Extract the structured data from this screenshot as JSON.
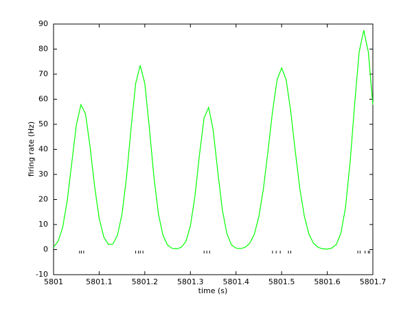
{
  "chart_data": {
    "type": "line",
    "xlabel": "time (s)",
    "ylabel": "firing rate (Hz)",
    "x": [
      5801,
      5801.01,
      5801.02,
      5801.03,
      5801.04,
      5801.05,
      5801.06,
      5801.07,
      5801.08,
      5801.09,
      5801.1,
      5801.11,
      5801.12,
      5801.13,
      5801.14,
      5801.15,
      5801.16,
      5801.17,
      5801.18,
      5801.19,
      5801.2,
      5801.21,
      5801.22,
      5801.23,
      5801.24,
      5801.25,
      5801.26,
      5801.27,
      5801.28,
      5801.29,
      5801.3,
      5801.31,
      5801.32,
      5801.33,
      5801.34,
      5801.35,
      5801.36,
      5801.37,
      5801.38,
      5801.39,
      5801.4,
      5801.41,
      5801.42,
      5801.43,
      5801.44,
      5801.45,
      5801.46,
      5801.47,
      5801.48,
      5801.49,
      5801.5,
      5801.51,
      5801.52,
      5801.53,
      5801.54,
      5801.55,
      5801.56,
      5801.57,
      5801.58,
      5801.59,
      5801.6,
      5801.61,
      5801.62,
      5801.63,
      5801.64,
      5801.65,
      5801.66,
      5801.67,
      5801.68,
      5801.69,
      5801.7
    ],
    "series": [
      {
        "color": "#00ff00",
        "values": [
          1.0,
          3.3,
          8.9,
          19.6,
          34.7,
          49.8,
          57.8,
          54.2,
          41.1,
          25.2,
          12.5,
          5.1,
          2.1,
          2.2,
          5.7,
          14.1,
          29.0,
          48.6,
          66.3,
          73.5,
          66.3,
          48.6,
          29.0,
          14.1,
          5.6,
          1.8,
          0.5,
          0.3,
          0.9,
          3.2,
          9.4,
          21.4,
          38.0,
          52.6,
          56.7,
          47.6,
          31.1,
          15.9,
          6.3,
          1.9,
          0.6,
          0.4,
          0.9,
          2.5,
          6.1,
          13.1,
          24.2,
          39.1,
          55.1,
          67.7,
          72.5,
          67.7,
          55.1,
          39.1,
          24.2,
          13.1,
          6.1,
          2.5,
          0.9,
          0.3,
          0.2,
          0.6,
          2.1,
          6.6,
          16.8,
          34.6,
          57.8,
          78.9,
          87.5,
          78.9,
          57.8
        ]
      }
    ],
    "spike_times": [
      5801.057,
      5801.061,
      5801.066,
      5801.18,
      5801.186,
      5801.19,
      5801.196,
      5801.33,
      5801.336,
      5801.342,
      5801.48,
      5801.488,
      5801.497,
      5801.515,
      5801.52,
      5801.667,
      5801.672,
      5801.683,
      5801.69,
      5801.693
    ],
    "spike_level": -1,
    "spike_color": "#000000",
    "xlim": [
      5801,
      5801.7
    ],
    "xticks": [
      5801,
      5801.1,
      5801.2,
      5801.3,
      5801.4,
      5801.5,
      5801.6,
      5801.7
    ],
    "ylim": [
      -10,
      90
    ],
    "yticks": [
      -10,
      0,
      10,
      20,
      30,
      40,
      50,
      60,
      70,
      80,
      90
    ],
    "grid": false
  }
}
